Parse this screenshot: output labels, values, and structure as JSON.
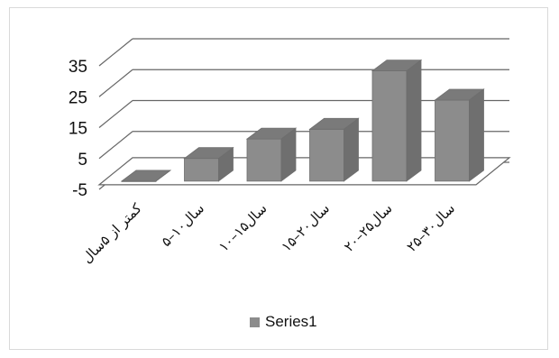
{
  "chart_data": {
    "type": "bar",
    "title": "",
    "xlabel": "",
    "ylabel": "",
    "categories": [
      "کمتر از ۵سال",
      "۵–۱۰سال",
      "۱۰–۱۵سال",
      "۱۵–۲۰سال",
      "۲۰–۲۵سال",
      "۲۵–۳۰سال"
    ],
    "series": [
      {
        "name": "Series1",
        "values": [
          0,
          7,
          13,
          16,
          34,
          25
        ]
      }
    ],
    "ylim": [
      -5,
      35
    ],
    "y_ticks": [
      "-5",
      "5",
      "15",
      "25",
      "35"
    ],
    "grid": true,
    "legend": "bottom",
    "bar_color": "#8c8c8c"
  }
}
